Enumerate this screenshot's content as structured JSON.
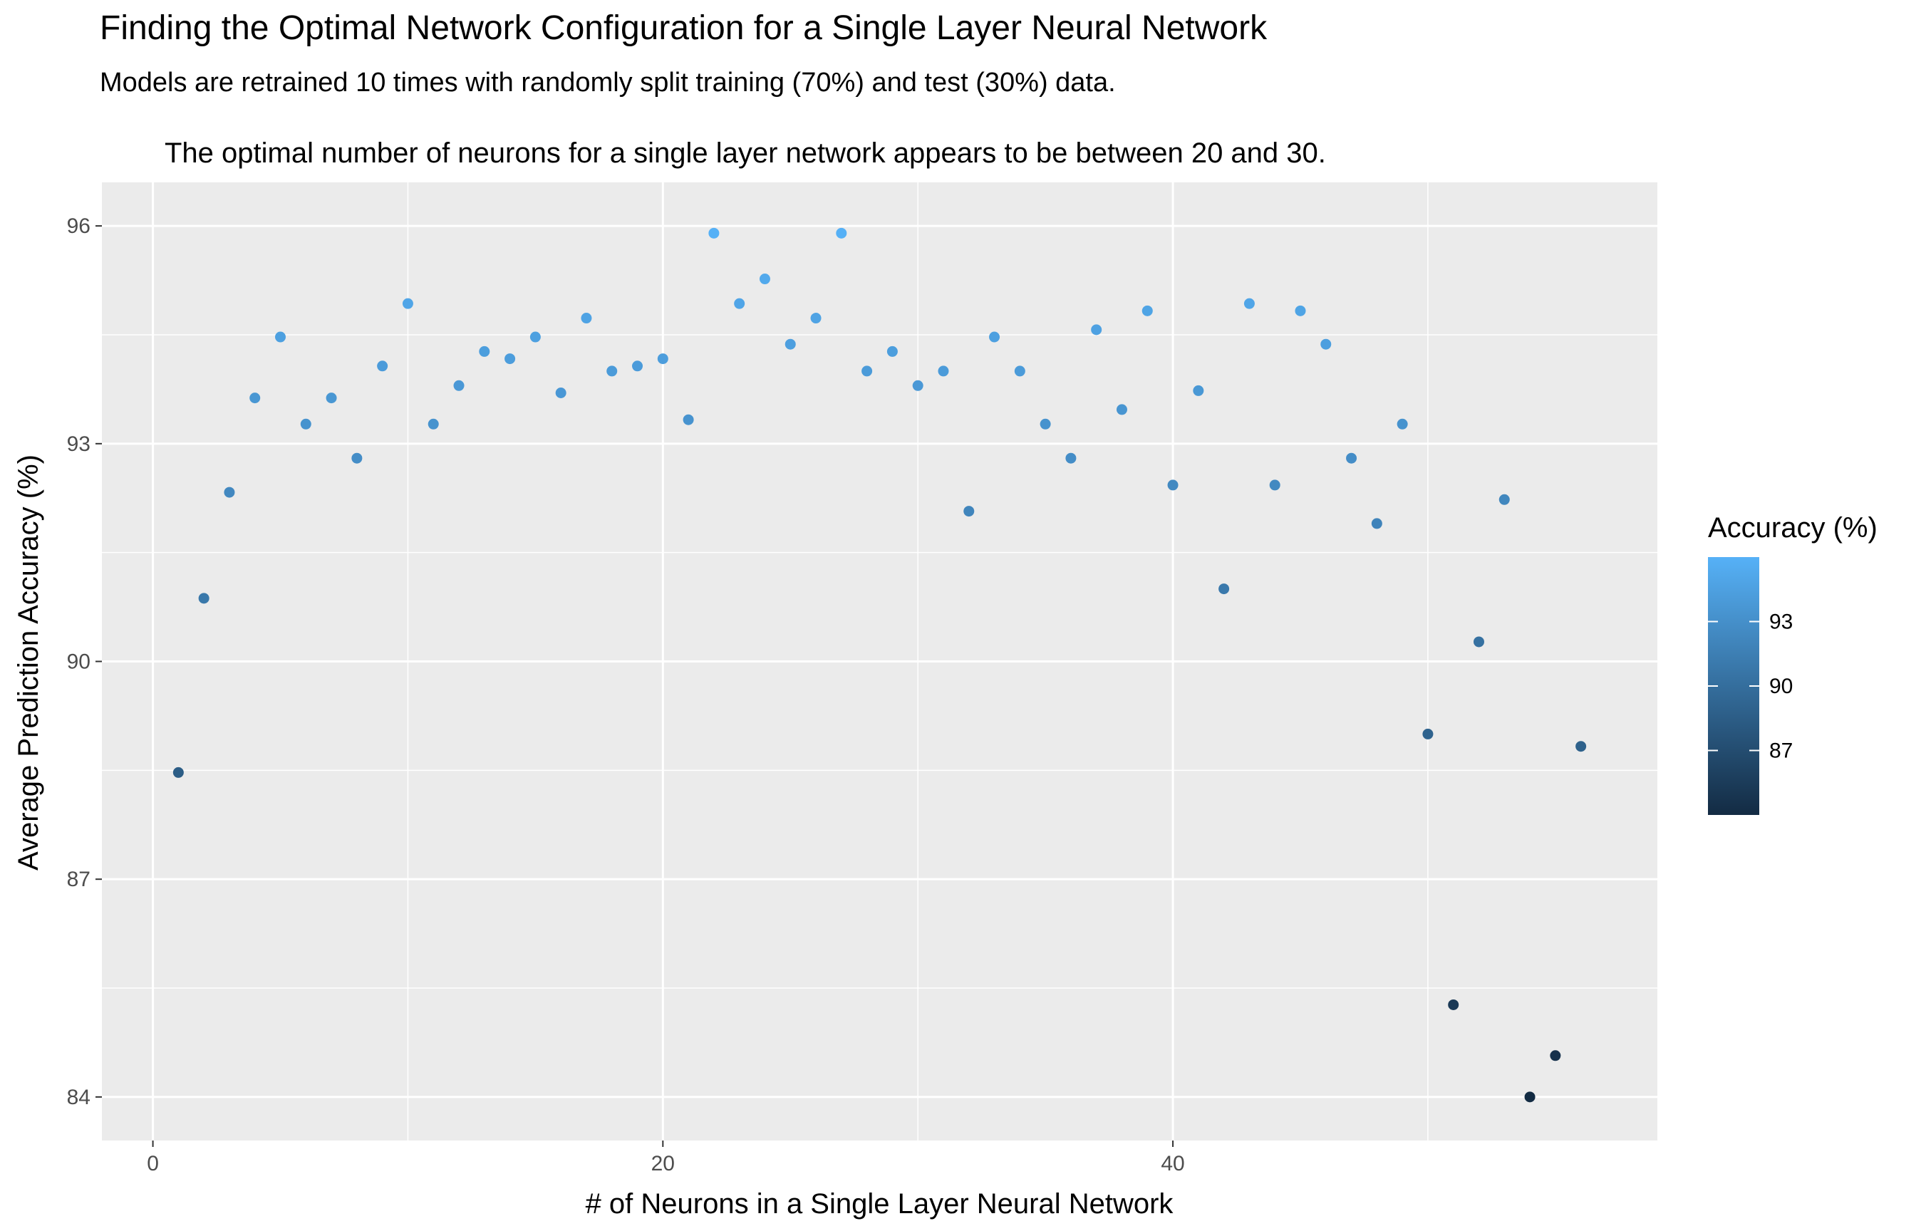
{
  "chart_data": {
    "type": "scatter",
    "title": "Finding the Optimal Network Configuration for a Single Layer Neural Network",
    "subtitle": "Models are retrained 10 times with randomly split training (70%) and test (30%) data.",
    "caption": "The optimal number of neurons for a single layer network appears to be between 20 and 30.",
    "xlabel": "# of Neurons in a Single Layer Neural Network",
    "ylabel": "Average Prediction Accuracy (%)",
    "xlim": [
      -2,
      59
    ],
    "ylim": [
      83.4,
      96.6
    ],
    "x_ticks": [
      0,
      20,
      40
    ],
    "y_ticks": [
      84,
      87,
      90,
      93,
      96
    ],
    "grid": true,
    "legend": {
      "title": "Accuracy (%)",
      "placement": "right",
      "ticks": [
        93,
        90,
        87
      ],
      "range": [
        84,
        96
      ],
      "color_low": "#132B43",
      "color_high": "#56B1F7"
    },
    "colors": {
      "panel_background": "#EBEBEB",
      "grid": "#FFFFFF",
      "tick_text": "#4D4D4D"
    },
    "series": [
      {
        "x": [
          1,
          2,
          3,
          4,
          5,
          6,
          7,
          8,
          9,
          10,
          11,
          12,
          13,
          14,
          15,
          16,
          17,
          18,
          19,
          20,
          21,
          22,
          23,
          24,
          25,
          26,
          27,
          28,
          29,
          30,
          31,
          32,
          33,
          34,
          35,
          36,
          37,
          38,
          39,
          40,
          41,
          42,
          43,
          44,
          45,
          46,
          47,
          48,
          49,
          50,
          51,
          52,
          53,
          54,
          55,
          56
        ],
        "values": [
          88.47,
          90.87,
          92.33,
          93.63,
          94.47,
          93.27,
          93.63,
          92.8,
          94.07,
          94.93,
          93.27,
          93.8,
          94.27,
          94.17,
          94.47,
          93.7,
          94.73,
          94.0,
          94.07,
          94.17,
          93.33,
          95.9,
          94.93,
          95.27,
          94.37,
          94.73,
          95.9,
          94.0,
          94.27,
          93.8,
          94.0,
          92.07,
          94.47,
          94.0,
          93.27,
          92.8,
          94.57,
          93.47,
          94.83,
          92.43,
          93.73,
          91.0,
          94.93,
          92.43,
          94.83,
          94.37,
          92.8,
          91.9,
          93.27,
          89.0,
          85.27,
          90.27,
          92.23,
          84.0,
          84.57,
          88.83
        ]
      }
    ]
  }
}
